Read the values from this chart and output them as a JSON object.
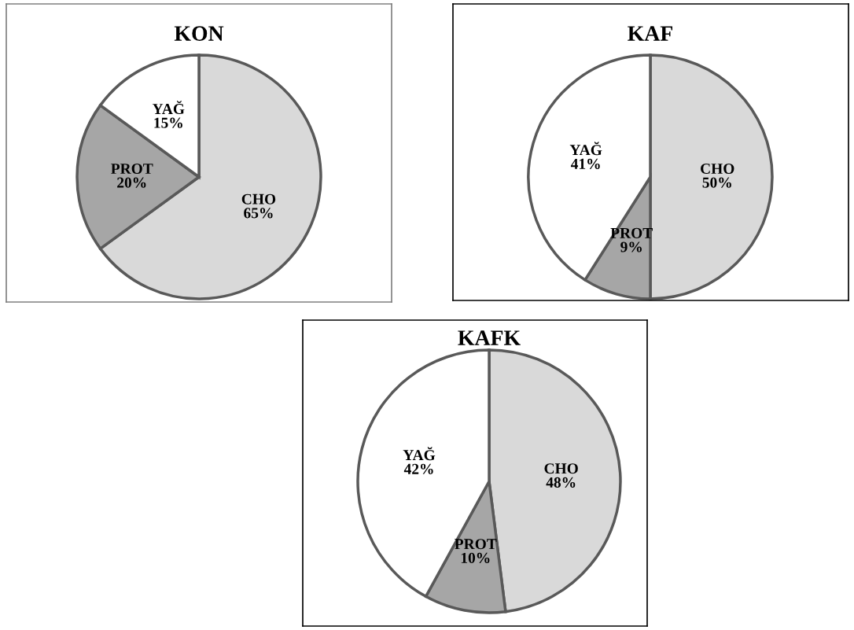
{
  "chart_data": [
    {
      "type": "pie",
      "title": "KON",
      "categories": [
        "CHO",
        "PROT",
        "YAĞ"
      ],
      "values": [
        65,
        20,
        15
      ],
      "value_labels": [
        "65%",
        "20%",
        "15%"
      ],
      "colors": [
        "#d9d9d9",
        "#a6a6a6",
        "#ffffff"
      ]
    },
    {
      "type": "pie",
      "title": "KAF",
      "categories": [
        "CHO",
        "PROT",
        "YAĞ"
      ],
      "values": [
        50,
        9,
        41
      ],
      "value_labels": [
        "50%",
        "9%",
        "41%"
      ],
      "colors": [
        "#d9d9d9",
        "#a6a6a6",
        "#ffffff"
      ]
    },
    {
      "type": "pie",
      "title": "KAFK",
      "categories": [
        "CHO",
        "PROT",
        "YAĞ"
      ],
      "values": [
        48,
        10,
        42
      ],
      "value_labels": [
        "48%",
        "10%",
        "42%"
      ],
      "colors": [
        "#d9d9d9",
        "#a6a6a6",
        "#ffffff"
      ]
    }
  ]
}
